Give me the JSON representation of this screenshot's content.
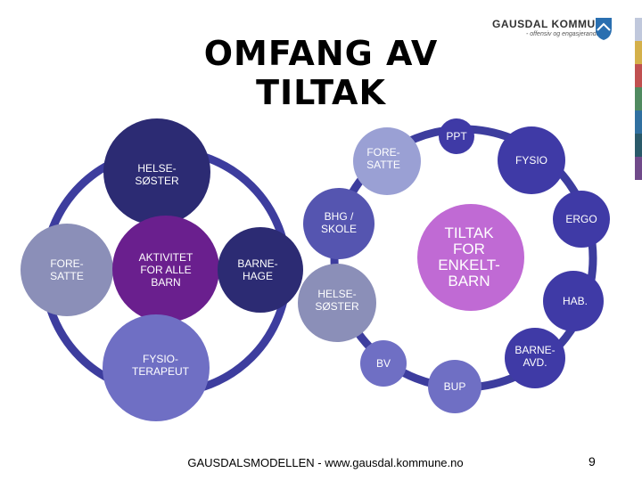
{
  "title": "OMFANG AV TILTAK",
  "logo": {
    "name": "GAUSDAL KOMMUNE",
    "tagline": "- offensiv og engasjerande -"
  },
  "colors": {
    "dark_navy": "#2c2b73",
    "ring": "#3d3d9e",
    "purple": "#6a1f8e",
    "lavender": "#9aa0d4",
    "periwinkle": "#6f6fc4",
    "grey_blue": "#8b8fb8",
    "magenta_light": "#c06ad4",
    "mid_blue": "#5555b0",
    "indigo": "#3f3aa6"
  },
  "stripes": [
    "#c0c8dc",
    "#d4b04a",
    "#c05050",
    "#508a60",
    "#3070a0",
    "#2a5a6a",
    "#704a8a"
  ],
  "nodes": {
    "helsesoster_left": "HELSE-\nSØSTER",
    "foresatte_left": "FORE-\nSATTE",
    "aktivitet": "AKTIVITET\nFOR ALLE\nBARN",
    "barnehage": "BARNE-\nHAGE",
    "fysioterapeut": "FYSIO-\nTERAPEUT",
    "ppt": "PPT",
    "foresatte_right": "FORE-\nSATTE",
    "fysio": "FYSIO",
    "bhg_skole": "BHG /\nSKOLE",
    "ergo": "ERGO",
    "tiltak": "TILTAK\nFOR\nENKELT-\nBARN",
    "helsesoster_right": "HELSE-\nSØSTER",
    "hab": "HAB.",
    "bv": "BV",
    "barneavd": "BARNE-\nAVD.",
    "bup": "BUP"
  },
  "footer": "GAUSDALSMODELLEN - www.gausdal.kommune.no",
  "page_number": "9"
}
